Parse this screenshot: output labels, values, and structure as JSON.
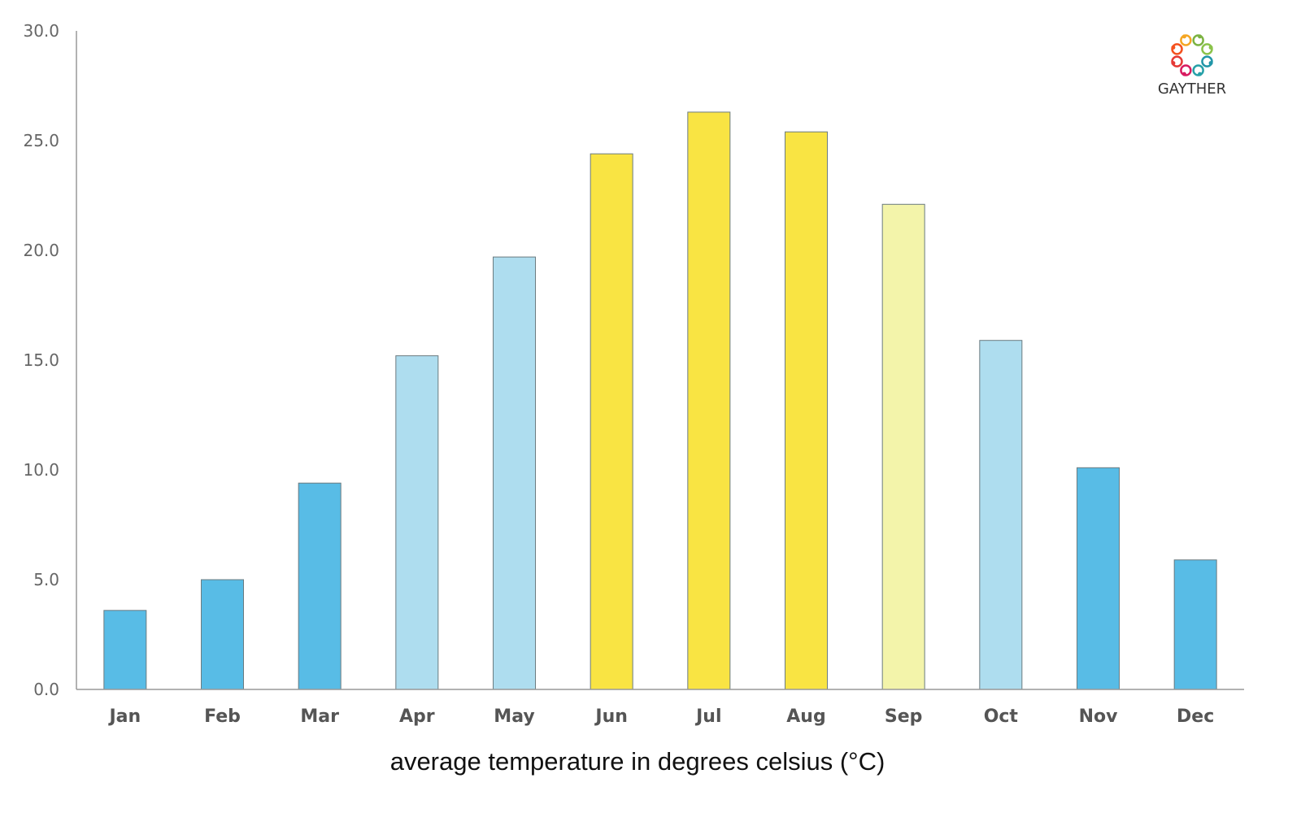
{
  "chart_data": {
    "type": "bar",
    "title": "",
    "xlabel": "average temperature in degrees celsius (°C)",
    "ylabel": "",
    "ylim": [
      0,
      30
    ],
    "yticks": [
      "0.0",
      "5.0",
      "10.0",
      "15.0",
      "20.0",
      "25.0",
      "30.0"
    ],
    "grid": false,
    "categories": [
      "Jan",
      "Feb",
      "Mar",
      "Apr",
      "May",
      "Jun",
      "Jul",
      "Aug",
      "Sep",
      "Oct",
      "Nov",
      "Dec"
    ],
    "values": [
      3.6,
      5.0,
      9.4,
      15.2,
      19.7,
      24.4,
      26.3,
      25.4,
      22.1,
      15.9,
      10.1,
      5.9
    ],
    "bar_colors": [
      "#58BCE6",
      "#58BCE6",
      "#58BCE6",
      "#AEDDEF",
      "#AEDDEF",
      "#F9E443",
      "#F9E443",
      "#F9E443",
      "#F3F4AA",
      "#AEDDEF",
      "#58BCE6",
      "#58BCE6"
    ]
  },
  "logo": {
    "text": "GAYTHER",
    "colors": [
      "#F5A623",
      "#7CB342",
      "#8BC34A",
      "#2196A8",
      "#26A0A8",
      "#D81B60",
      "#E53935",
      "#F4511E"
    ]
  }
}
